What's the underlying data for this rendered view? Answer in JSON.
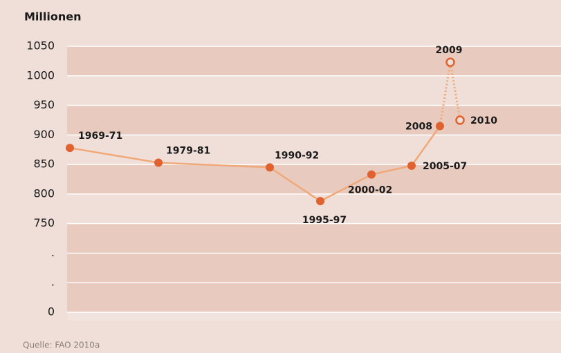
{
  "chart_data": {
    "type": "line",
    "title": "Millionen",
    "source": "Quelle: FAO 2010a",
    "categories": [
      "1969-71",
      "1979-81",
      "1990-92",
      "1995-97",
      "2000-02",
      "2005-07",
      "2008",
      "2009",
      "2010"
    ],
    "series": [
      {
        "color": "#f0a878",
        "marker_color": "#e0622e",
        "marker": "filled",
        "line": "solid",
        "values": [
          878,
          853,
          845,
          788,
          833,
          848,
          915,
          null,
          null
        ]
      },
      {
        "color": "#f0a878",
        "marker_color": "#e0622e",
        "marker": "open",
        "line": "dotted",
        "values": [
          null,
          null,
          null,
          null,
          null,
          null,
          null,
          1023,
          925
        ]
      }
    ],
    "ylim": [
      0,
      1050
    ],
    "ybreak": [
      0,
      600
    ],
    "yticks": [
      1050,
      1000,
      950,
      900,
      850,
      800,
      750,
      {
        "value": 700,
        "label": "."
      },
      {
        "value": 650,
        "label": "."
      },
      0
    ],
    "grid": true
  }
}
